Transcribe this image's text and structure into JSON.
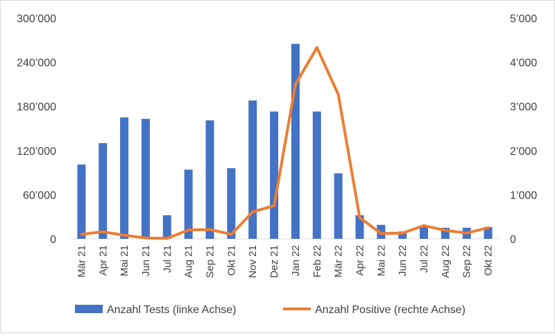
{
  "chart_data": {
    "type": "bar+line",
    "categories": [
      "Mär 21",
      "Apr 21",
      "Mai 21",
      "Jun 21",
      "Jul 21",
      "Aug 21",
      "Sep 21",
      "Okt 21",
      "Nov 21",
      "Dez 21",
      "Jan 22",
      "Feb 22",
      "Mär 22",
      "Apr 22",
      "Mai 22",
      "Jun 22",
      "Jul 22",
      "Aug 22",
      "Sep 22",
      "Okt 22"
    ],
    "series": [
      {
        "name": "Anzahl Tests (linke Achse)",
        "type": "bar",
        "axis": "left",
        "color": "#4472C4",
        "values": [
          101000,
          130000,
          165000,
          163000,
          32000,
          94000,
          161000,
          96000,
          188000,
          173000,
          265000,
          173000,
          89000,
          32000,
          19000,
          10000,
          16000,
          15000,
          15000,
          16000
        ]
      },
      {
        "name": "Anzahl Positive (rechte Achse)",
        "type": "line",
        "axis": "right",
        "color": "#ED7D31",
        "values": [
          100,
          160,
          80,
          20,
          10,
          200,
          210,
          100,
          610,
          750,
          3500,
          4330,
          3270,
          480,
          120,
          130,
          300,
          190,
          130,
          250
        ]
      }
    ],
    "y_left": {
      "min": 0,
      "max": 300000,
      "ticks": [
        0,
        60000,
        120000,
        180000,
        240000,
        300000
      ],
      "tick_labels": [
        "0",
        "60’000",
        "120’000",
        "180’000",
        "240’000",
        "300’000"
      ]
    },
    "y_right": {
      "min": 0,
      "max": 5000,
      "ticks": [
        0,
        1000,
        2000,
        3000,
        4000,
        5000
      ],
      "tick_labels": [
        "0",
        "1’000",
        "2’000",
        "3’000",
        "4’000",
        "5’000"
      ]
    },
    "grid": false,
    "legend_position": "bottom",
    "title": "",
    "xlabel": "",
    "ylabel": ""
  },
  "legend": {
    "bars_label": "Anzahl Tests (linke Achse)",
    "line_label": "Anzahl Positive (rechte Achse)"
  }
}
